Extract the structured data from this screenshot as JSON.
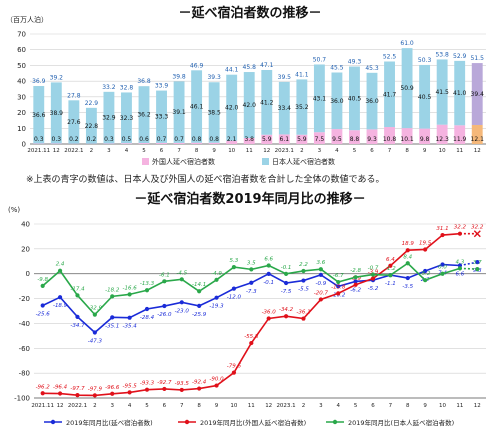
{
  "titles": {
    "top": "－延べ宿泊者数の推移－",
    "bottom": "－延べ宿泊者数2019年同月比の推移－"
  },
  "note": "※上表の青字の数値は、日本人及び外国人の延べ宿泊者数を合計した全体の数値である。",
  "colors": {
    "japanese_bar": "#9bd3e6",
    "foreign_bar": "#f5b3e0",
    "last_japanese_bar": "#b9a8d9",
    "last_foreign_bar": "#f5b87a",
    "total_label": "#1f5fb0",
    "line_total": "#1a2bd8",
    "line_foreign": "#e0101a",
    "line_japanese": "#2aa84a"
  },
  "chart_data": [
    {
      "type": "bar",
      "stacked": true,
      "ylabel": "（百万人泊）",
      "ylim": [
        0,
        70
      ],
      "yticks": [
        0,
        10,
        20,
        30,
        40,
        50,
        60,
        70
      ],
      "grid": true,
      "legend_position": "bottom",
      "categories": [
        "2021.11",
        "12",
        "2022.1",
        "2",
        "3",
        "4",
        "5",
        "6",
        "7",
        "8",
        "9",
        "10",
        "11",
        "12",
        "2023.1",
        "2",
        "3",
        "4",
        "5",
        "6",
        "7",
        "8",
        "9",
        "10",
        "11",
        "12"
      ],
      "series": [
        {
          "name": "外国人延べ宿泊者数",
          "values": [
            0.3,
            0.3,
            0.2,
            0.2,
            0.3,
            0.5,
            0.6,
            0.7,
            0.7,
            0.8,
            0.8,
            2.1,
            3.8,
            5.9,
            6.1,
            5.9,
            7.5,
            9.5,
            8.8,
            9.3,
            10.8,
            10.1,
            9.8,
            12.3,
            11.9,
            12.1
          ]
        },
        {
          "name": "日本人延べ宿泊者数",
          "values": [
            36.6,
            38.9,
            27.6,
            22.8,
            32.9,
            32.3,
            36.2,
            33.3,
            39.1,
            46.1,
            38.5,
            42.0,
            42.0,
            41.2,
            33.4,
            35.2,
            43.1,
            36.0,
            40.5,
            36.0,
            41.7,
            50.9,
            40.5,
            41.5,
            41.0,
            39.4
          ]
        }
      ],
      "totals": [
        36.9,
        39.2,
        27.8,
        22.9,
        33.2,
        32.8,
        36.8,
        33.9,
        39.8,
        46.9,
        39.3,
        44.1,
        45.8,
        47.1,
        39.5,
        41.1,
        50.7,
        45.5,
        49.3,
        45.3,
        52.5,
        61.0,
        50.3,
        53.8,
        52.9,
        51.5
      ]
    },
    {
      "type": "line",
      "ylabel": "(%)",
      "ylim": [
        -100,
        40
      ],
      "yticks": [
        40,
        20,
        0,
        -20,
        -40,
        -60,
        -80,
        -100
      ],
      "grid": true,
      "legend_position": "bottom",
      "categories": [
        "2021.11",
        "12",
        "2022.1",
        "2",
        "3",
        "4",
        "5",
        "6",
        "7",
        "8",
        "9",
        "10",
        "11",
        "12",
        "2023.1",
        "2",
        "3",
        "4",
        "5",
        "6",
        "7",
        "8",
        "9",
        "10",
        "11",
        "12"
      ],
      "series": [
        {
          "name": "2019年同月比(延べ宿泊者数)",
          "values": [
            -25.6,
            -18.9,
            -34.7,
            -47.3,
            -35.1,
            -35.4,
            -28.4,
            -26.0,
            -23.0,
            -25.9,
            -19.3,
            -12.0,
            -7.3,
            -0.1,
            -7.5,
            -5.5,
            -0.9,
            -10.2,
            -6.2,
            -5.2,
            -1.1,
            -3.5,
            2.2,
            7.4,
            6.6,
            9.3
          ]
        },
        {
          "name": "2019年同月比(外国人延べ宿泊者数)",
          "values": [
            -96.2,
            -96.4,
            -97.7,
            -97.9,
            -96.6,
            -95.5,
            -93.3,
            -92.7,
            -93.5,
            -92.4,
            -90.0,
            -79.6,
            -55.8,
            -36.0,
            -34.2,
            -36.1,
            -20.7,
            -15.8,
            -8.9,
            -3.9,
            6.4,
            18.9,
            19.5,
            31.1,
            32.2,
            32.2
          ]
        },
        {
          "name": "2019年同月比(日本人延べ宿泊者数)",
          "values": [
            -9.8,
            2.4,
            -17.4,
            -32.9,
            -18.2,
            -16.6,
            -13.3,
            -6.1,
            -4.5,
            -14.1,
            -4.9,
            5.3,
            3.5,
            6.6,
            -0.1,
            2.2,
            3.6,
            -6.7,
            -2.8,
            -0.7,
            -1.2,
            8.4,
            -5.2,
            0.0,
            4.3,
            3.7
          ]
        }
      ]
    }
  ]
}
